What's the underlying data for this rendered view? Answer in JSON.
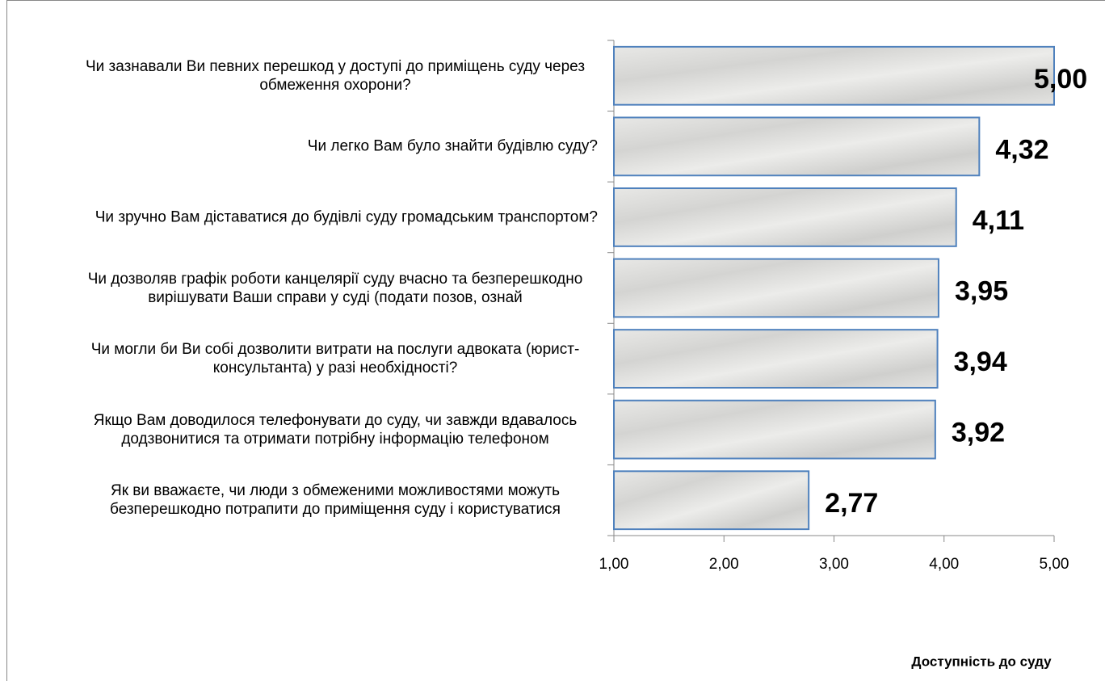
{
  "chart_data": {
    "type": "barh",
    "categories": [
      "Чи зазнавали Ви певних перешкод у доступі до приміщень суду через обмеження охорони?",
      "Чи легко Вам було знайти будівлю суду?",
      "Чи зручно Вам діставатися до будівлі суду громадським транспортом?",
      "Чи дозволяв графік роботи канцелярії суду вчасно та безперешкодно вирішувати Ваши справи у суді (подати позов, ознай",
      "Чи могли би Ви собі дозволити витрати на послуги адвоката (юрист-консультанта) у разі необхідності?",
      "Якщо Вам доводилося телефонувати до суду, чи завжди вдавалось додзвонитися та отримати потрібну інформацію телефоном",
      "Як ви вважаєте, чи люди з обмеженими можливостями можуть безперешкодно потрапити до приміщення суду і користуватися"
    ],
    "values": [
      5.0,
      4.32,
      4.11,
      3.95,
      3.94,
      3.92,
      2.77
    ],
    "value_labels": [
      "5,00",
      "4,32",
      "4,11",
      "3,95",
      "3,94",
      "3,92",
      "2,77"
    ],
    "xlim": [
      1,
      5
    ],
    "xticks": [
      {
        "value": 1,
        "label": "1,00"
      },
      {
        "value": 2,
        "label": "2,00"
      },
      {
        "value": 3,
        "label": "3,00"
      },
      {
        "value": 4,
        "label": "4,00"
      },
      {
        "value": 5,
        "label": "5,00"
      }
    ],
    "x_label": "Доступність до суду",
    "color": "#4f81bd"
  }
}
